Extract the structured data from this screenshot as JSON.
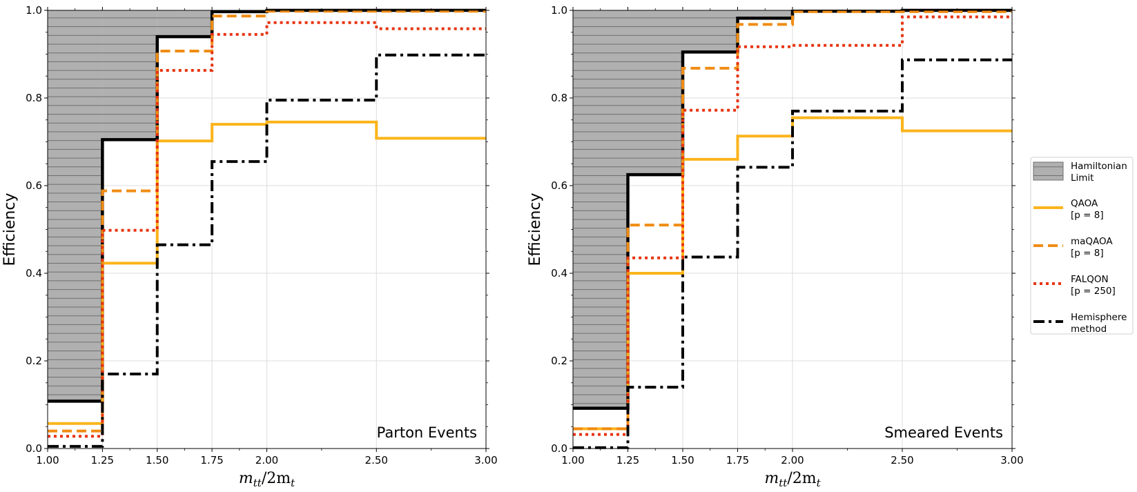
{
  "chart_data": [
    {
      "type": "step",
      "annotation": "Parton Events",
      "xlabel_parts": [
        "m",
        "tt",
        "/2m",
        "t"
      ],
      "ylabel": "Efficiency",
      "xlim": [
        1.0,
        3.0
      ],
      "ylim": [
        0.0,
        1.0
      ],
      "grid": true,
      "bin_edges": [
        1.0,
        1.25,
        1.5,
        1.75,
        2.0,
        2.5,
        3.0
      ],
      "x_ticks": [
        1.0,
        1.25,
        1.5,
        1.75,
        2.0,
        2.5,
        3.0
      ],
      "x_tick_labels": [
        "1.00",
        "1.25",
        "1.50",
        "1.75",
        "2.00",
        "2.50",
        "3.00"
      ],
      "y_ticks": [
        0.0,
        0.2,
        0.4,
        0.6,
        0.8,
        1.0
      ],
      "y_tick_labels": [
        "0.0",
        "0.2",
        "0.4",
        "0.6",
        "0.8",
        "1.0"
      ],
      "series": [
        {
          "key": "hamiltonian",
          "name": "Hamiltonian Limit",
          "values": [
            0.108,
            0.705,
            0.94,
            0.997,
            1.0,
            1.0
          ]
        },
        {
          "key": "qaoa",
          "name": "QAOA [p = 8]",
          "values": [
            0.057,
            0.423,
            0.702,
            0.74,
            0.745,
            0.708
          ]
        },
        {
          "key": "maqaoa",
          "name": "maQAOA [p = 8]",
          "values": [
            0.04,
            0.588,
            0.907,
            0.987,
            0.998,
            0.998
          ]
        },
        {
          "key": "falqon",
          "name": "FALQON [p = 250]",
          "values": [
            0.028,
            0.498,
            0.863,
            0.945,
            0.972,
            0.958
          ]
        },
        {
          "key": "hemisphere",
          "name": "Hemisphere method",
          "values": [
            0.005,
            0.17,
            0.465,
            0.655,
            0.795,
            0.898
          ]
        }
      ]
    },
    {
      "type": "step",
      "annotation": "Smeared Events",
      "xlabel_parts": [
        "m",
        "tt",
        "/2m",
        "t"
      ],
      "ylabel": "Efficiency",
      "xlim": [
        1.0,
        3.0
      ],
      "ylim": [
        0.0,
        1.0
      ],
      "grid": true,
      "bin_edges": [
        1.0,
        1.25,
        1.5,
        1.75,
        2.0,
        2.5,
        3.0
      ],
      "x_ticks": [
        1.0,
        1.25,
        1.5,
        1.75,
        2.0,
        2.5,
        3.0
      ],
      "x_tick_labels": [
        "1.00",
        "1.25",
        "1.50",
        "1.75",
        "2.00",
        "2.50",
        "3.00"
      ],
      "y_ticks": [
        0.0,
        0.2,
        0.4,
        0.6,
        0.8,
        1.0
      ],
      "y_tick_labels": [
        "0.0",
        "0.2",
        "0.4",
        "0.6",
        "0.8",
        "1.0"
      ],
      "series": [
        {
          "key": "hamiltonian",
          "name": "Hamiltonian Limit",
          "values": [
            0.092,
            0.625,
            0.905,
            0.982,
            0.998,
            1.0
          ]
        },
        {
          "key": "qaoa",
          "name": "QAOA [p = 8]",
          "values": [
            0.045,
            0.4,
            0.66,
            0.713,
            0.755,
            0.725
          ]
        },
        {
          "key": "maqaoa",
          "name": "maQAOA [p = 8]",
          "values": [
            0.045,
            0.51,
            0.868,
            0.968,
            0.997,
            0.997
          ]
        },
        {
          "key": "falqon",
          "name": "FALQON [p = 250]",
          "values": [
            0.032,
            0.435,
            0.772,
            0.917,
            0.92,
            0.985
          ]
        },
        {
          "key": "hemisphere",
          "name": "Hemisphere method",
          "values": [
            0.002,
            0.14,
            0.437,
            0.642,
            0.77,
            0.887
          ]
        }
      ]
    }
  ],
  "legend": {
    "items": [
      {
        "key": "hamiltonian",
        "line1": "Hamiltonian",
        "line2": "Limit"
      },
      {
        "key": "qaoa",
        "line1": "QAOA",
        "line2": "[p = 8]"
      },
      {
        "key": "maqaoa",
        "line1": "maQAOA",
        "line2": "[p = 8]"
      },
      {
        "key": "falqon",
        "line1": "FALQON",
        "line2": "[p = 250]"
      },
      {
        "key": "hemisphere",
        "line1": "Hemisphere",
        "line2": "method"
      }
    ]
  },
  "colors": {
    "hamiltonian_fill": "#b0b0b0",
    "hamiltonian_hatch": "#6e6e6e",
    "hamiltonian_line": "#000000",
    "qaoa": "#fbb41b",
    "maqaoa": "#f08c14",
    "falqon": "#e8330f",
    "hemisphere": "#000000",
    "grid": "#dcdcdc"
  }
}
